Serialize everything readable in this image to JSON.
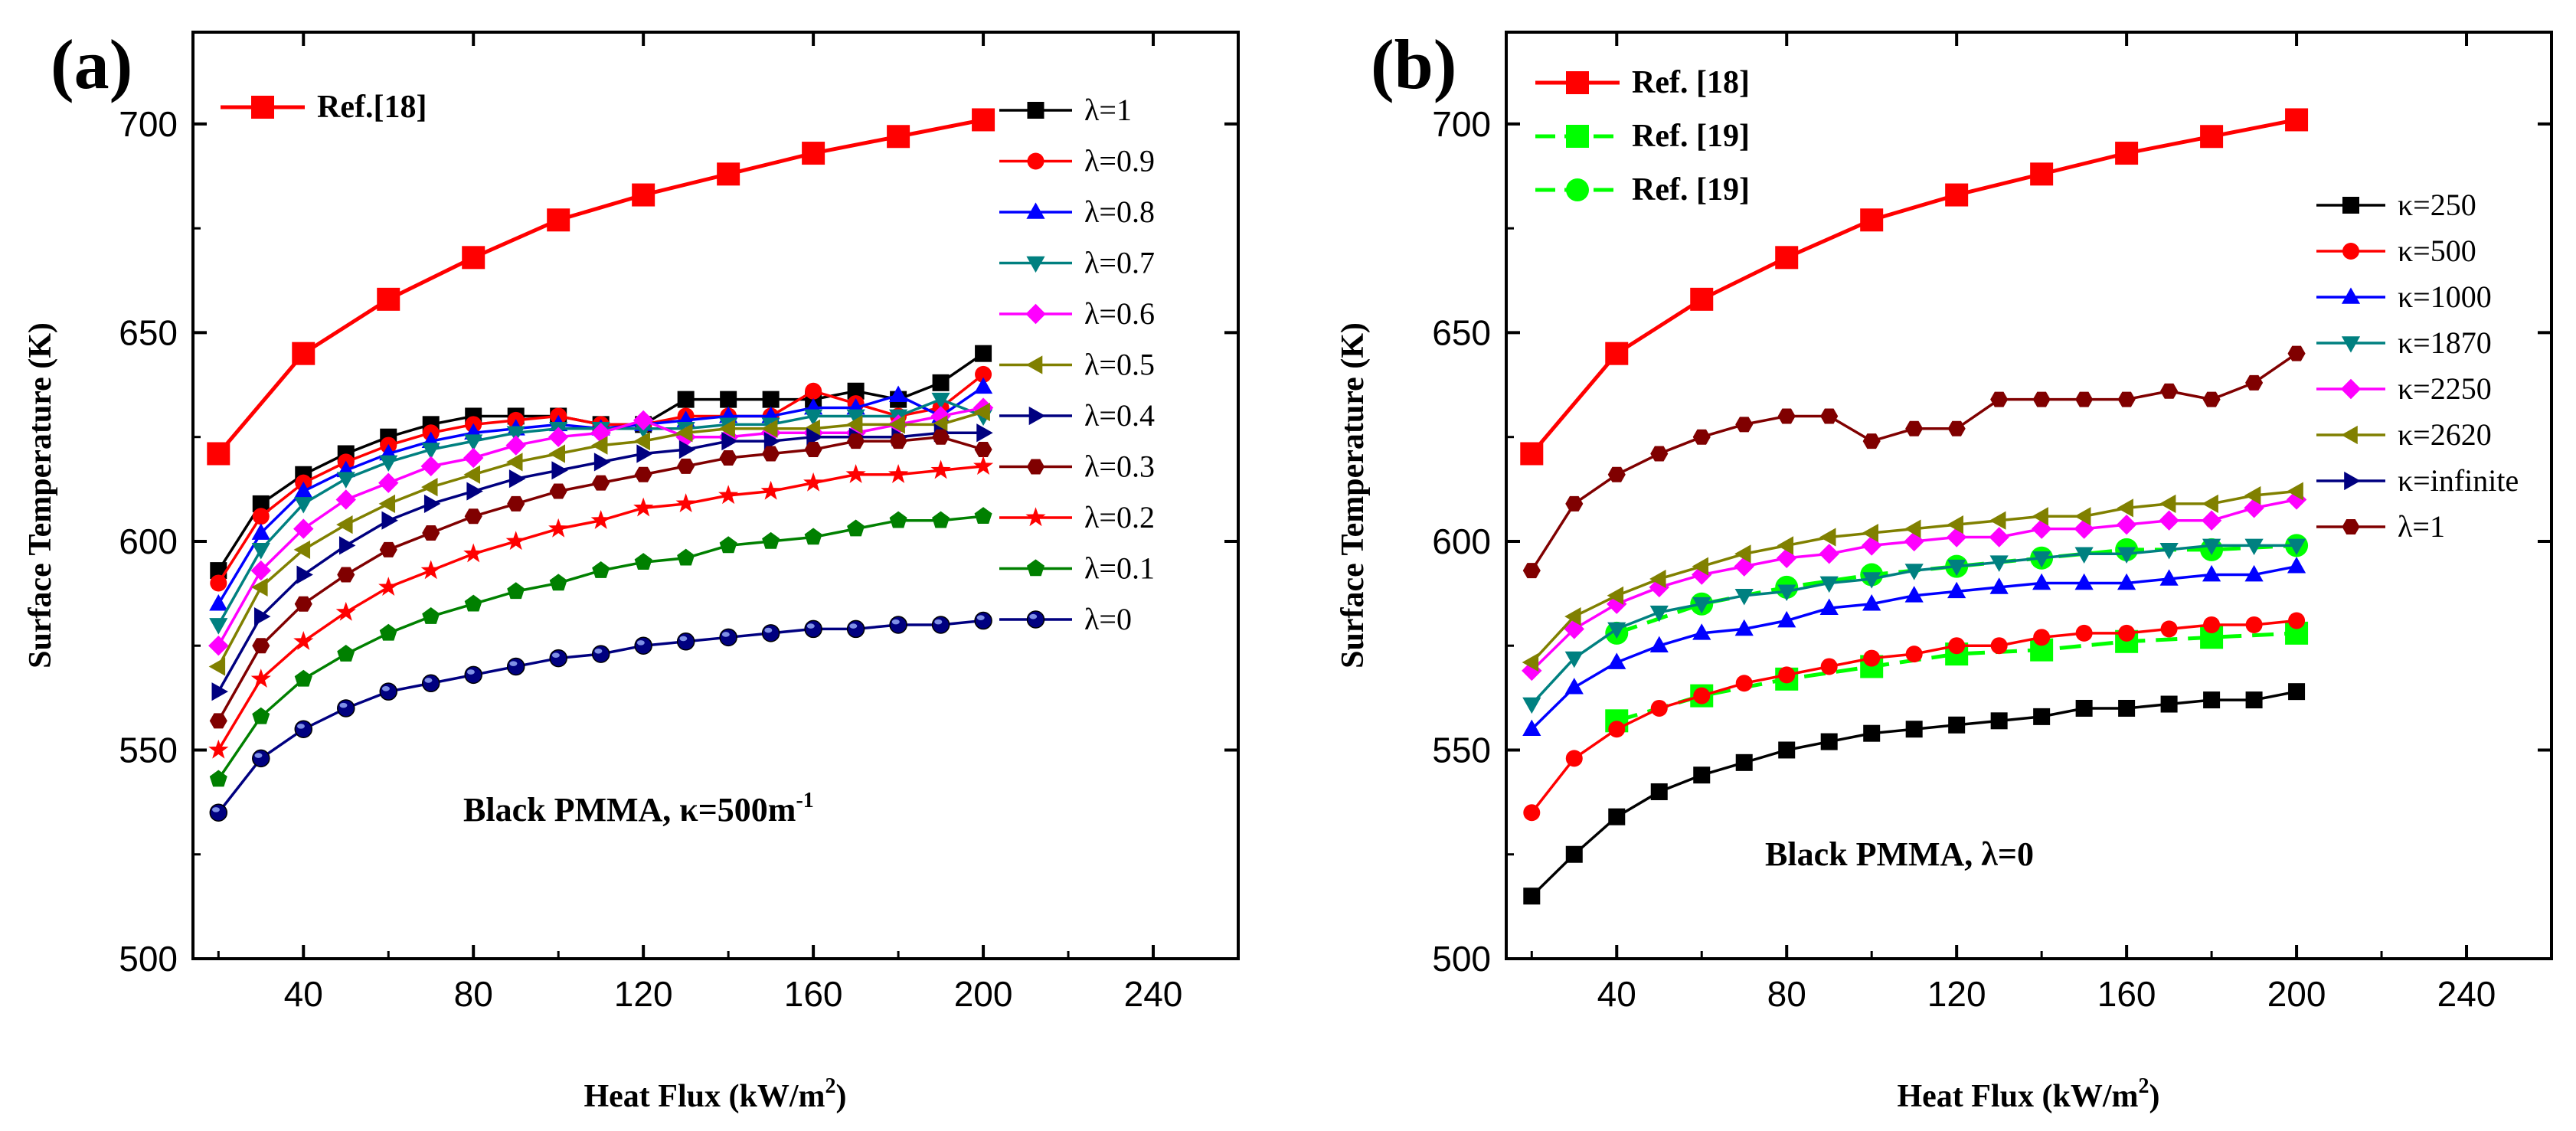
{
  "chart_data": [
    {
      "type": "line",
      "panel_label": "(a)",
      "xlabel": "Heat Flux (kW/m",
      "xlabel_sup": "2",
      "xlabel_end": ")",
      "ylabel": "Surface Temperature (K)",
      "xlim": [
        14,
        260
      ],
      "ylim": [
        500,
        722
      ],
      "xticks": [
        40,
        80,
        120,
        160,
        200,
        240
      ],
      "yticks": [
        500,
        550,
        600,
        650,
        700
      ],
      "annotation": "Black PMMA, κ=500m",
      "annotation_sup": "-1",
      "ref_legend_position": "top-left",
      "series_legend_position": "top-right",
      "x": [
        20,
        30,
        40,
        50,
        60,
        70,
        80,
        90,
        100,
        110,
        120,
        130,
        140,
        150,
        160,
        170,
        180,
        190,
        200
      ],
      "series": [
        {
          "name": "Ref.[18]",
          "group": "ref",
          "color": "#ff0000",
          "marker": "square",
          "size": "large",
          "dash": false,
          "x": [
            20,
            40,
            60,
            80,
            100,
            120,
            140,
            160,
            180,
            200
          ],
          "values": [
            621,
            645,
            658,
            668,
            677,
            683,
            688,
            693,
            697,
            701
          ]
        },
        {
          "name": "λ=1",
          "group": "main",
          "color": "#000000",
          "marker": "square",
          "values": [
            593,
            609,
            616,
            621,
            625,
            628,
            630,
            630,
            630,
            628,
            628,
            634,
            634,
            634,
            634,
            636,
            634,
            638,
            645
          ]
        },
        {
          "name": "λ=0.9",
          "group": "main",
          "color": "#ff0000",
          "marker": "circle",
          "values": [
            590,
            606,
            614,
            619,
            623,
            626,
            628,
            629,
            630,
            628,
            628,
            630,
            630,
            630,
            636,
            633,
            630,
            632,
            640
          ]
        },
        {
          "name": "λ=0.8",
          "group": "main",
          "color": "#0000ff",
          "marker": "triangle-up",
          "values": [
            585,
            602,
            612,
            617,
            621,
            624,
            626,
            627,
            628,
            627,
            628,
            629,
            630,
            630,
            632,
            632,
            635,
            630,
            637
          ]
        },
        {
          "name": "λ=0.7",
          "group": "main",
          "color": "#008080",
          "marker": "triangle-down",
          "values": [
            580,
            598,
            609,
            615,
            619,
            622,
            624,
            626,
            627,
            627,
            627,
            627,
            628,
            628,
            630,
            630,
            630,
            634,
            630
          ]
        },
        {
          "name": "λ=0.6",
          "group": "main",
          "color": "#ff00ff",
          "marker": "diamond",
          "values": [
            575,
            593,
            603,
            610,
            614,
            618,
            620,
            623,
            625,
            626,
            629,
            625,
            625,
            626,
            626,
            626,
            628,
            630,
            632
          ]
        },
        {
          "name": "λ=0.5",
          "group": "main",
          "color": "#808000",
          "marker": "triangle-left",
          "values": [
            570,
            589,
            598,
            604,
            609,
            613,
            616,
            619,
            621,
            623,
            624,
            626,
            627,
            627,
            627,
            628,
            628,
            628,
            631
          ]
        },
        {
          "name": "λ=0.4",
          "group": "main",
          "color": "#000080",
          "marker": "triangle-right",
          "values": [
            564,
            582,
            592,
            599,
            605,
            609,
            612,
            615,
            617,
            619,
            621,
            622,
            624,
            624,
            625,
            625,
            625,
            626,
            626
          ]
        },
        {
          "name": "λ=0.3",
          "group": "main",
          "color": "#800000",
          "marker": "hexagon",
          "values": [
            557,
            575,
            585,
            592,
            598,
            602,
            606,
            609,
            612,
            614,
            616,
            618,
            620,
            621,
            622,
            624,
            624,
            625,
            622
          ]
        },
        {
          "name": "λ=0.2",
          "group": "main",
          "color": "#ff0000",
          "marker": "star",
          "values": [
            550,
            567,
            576,
            583,
            589,
            593,
            597,
            600,
            603,
            605,
            608,
            609,
            611,
            612,
            614,
            616,
            616,
            617,
            618
          ]
        },
        {
          "name": "λ=0.1",
          "group": "main",
          "color": "#008000",
          "marker": "pentagon",
          "values": [
            543,
            558,
            567,
            573,
            578,
            582,
            585,
            588,
            590,
            593,
            595,
            596,
            599,
            600,
            601,
            603,
            605,
            605,
            606
          ]
        },
        {
          "name": "λ=0",
          "group": "main",
          "color": "#000080",
          "marker": "circle-half",
          "values": [
            535,
            548,
            555,
            560,
            564,
            566,
            568,
            570,
            572,
            573,
            575,
            576,
            577,
            578,
            579,
            579,
            580,
            580,
            581
          ]
        }
      ]
    },
    {
      "type": "line",
      "panel_label": "(b)",
      "xlabel": "Heat Flux (kW/m",
      "xlabel_sup": "2",
      "xlabel_end": ")",
      "ylabel": "Surface Temperature (K)",
      "xlim": [
        14,
        260
      ],
      "ylim": [
        500,
        722
      ],
      "xticks": [
        40,
        80,
        120,
        160,
        200,
        240
      ],
      "yticks": [
        500,
        550,
        600,
        650,
        700
      ],
      "annotation": "Black PMMA,  λ=0",
      "annotation_sup": "",
      "ref_legend_position": "top-left",
      "series_legend_position": "right",
      "x": [
        20,
        30,
        40,
        50,
        60,
        70,
        80,
        90,
        100,
        110,
        120,
        130,
        140,
        150,
        160,
        170,
        180,
        190,
        200
      ],
      "series": [
        {
          "name": "Ref. [18]",
          "group": "ref",
          "color": "#ff0000",
          "marker": "square",
          "size": "large",
          "dash": false,
          "x": [
            20,
            40,
            60,
            80,
            100,
            120,
            140,
            160,
            180,
            200
          ],
          "values": [
            621,
            645,
            658,
            668,
            677,
            683,
            688,
            693,
            697,
            701
          ]
        },
        {
          "name": "Ref. [19]",
          "group": "ref",
          "color": "#00ff00",
          "marker": "square",
          "size": "large",
          "dash": true,
          "x": [
            40,
            60,
            80,
            100,
            120,
            140,
            160,
            180,
            200
          ],
          "values": [
            557,
            563,
            567,
            570,
            573,
            574,
            576,
            577,
            578
          ]
        },
        {
          "name": "Ref. [19]",
          "group": "ref",
          "color": "#00ff00",
          "marker": "circle",
          "size": "large",
          "dash": true,
          "x": [
            40,
            60,
            80,
            100,
            120,
            140,
            160,
            180,
            200
          ],
          "values": [
            578,
            585,
            589,
            592,
            594,
            596,
            598,
            598,
            599
          ]
        },
        {
          "name": "κ=250",
          "group": "main",
          "color": "#000000",
          "marker": "square",
          "values": [
            515,
            525,
            534,
            540,
            544,
            547,
            550,
            552,
            554,
            555,
            556,
            557,
            558,
            560,
            560,
            561,
            562,
            562,
            564
          ]
        },
        {
          "name": "κ=500",
          "group": "main",
          "color": "#ff0000",
          "marker": "circle",
          "values": [
            535,
            548,
            555,
            560,
            563,
            566,
            568,
            570,
            572,
            573,
            575,
            575,
            577,
            578,
            578,
            579,
            580,
            580,
            581
          ]
        },
        {
          "name": "κ=1000",
          "group": "main",
          "color": "#0000ff",
          "marker": "triangle-up",
          "values": [
            555,
            565,
            571,
            575,
            578,
            579,
            581,
            584,
            585,
            587,
            588,
            589,
            590,
            590,
            590,
            591,
            592,
            592,
            594
          ]
        },
        {
          "name": "κ=1870",
          "group": "main",
          "color": "#008080",
          "marker": "triangle-down",
          "values": [
            561,
            572,
            579,
            583,
            585,
            587,
            588,
            590,
            591,
            593,
            594,
            595,
            596,
            597,
            597,
            598,
            599,
            599,
            599
          ]
        },
        {
          "name": "κ=2250",
          "group": "main",
          "color": "#ff00ff",
          "marker": "diamond",
          "values": [
            569,
            579,
            585,
            589,
            592,
            594,
            596,
            597,
            599,
            600,
            601,
            601,
            603,
            603,
            604,
            605,
            605,
            608,
            610
          ]
        },
        {
          "name": "κ=2620",
          "group": "main",
          "color": "#808000",
          "marker": "triangle-left",
          "values": [
            571,
            582,
            587,
            591,
            594,
            597,
            599,
            601,
            602,
            603,
            604,
            605,
            606,
            606,
            608,
            609,
            609,
            611,
            612
          ]
        },
        {
          "name": "κ=infinite",
          "group": "main",
          "color": "#000080",
          "marker": "triangle-right",
          "values": [],
          "x": []
        },
        {
          "name": "λ=1",
          "group": "main",
          "color": "#800000",
          "marker": "hexagon",
          "values": [
            593,
            609,
            616,
            621,
            625,
            628,
            630,
            630,
            624,
            627,
            627,
            634,
            634,
            634,
            634,
            636,
            634,
            638,
            645
          ]
        }
      ]
    }
  ]
}
